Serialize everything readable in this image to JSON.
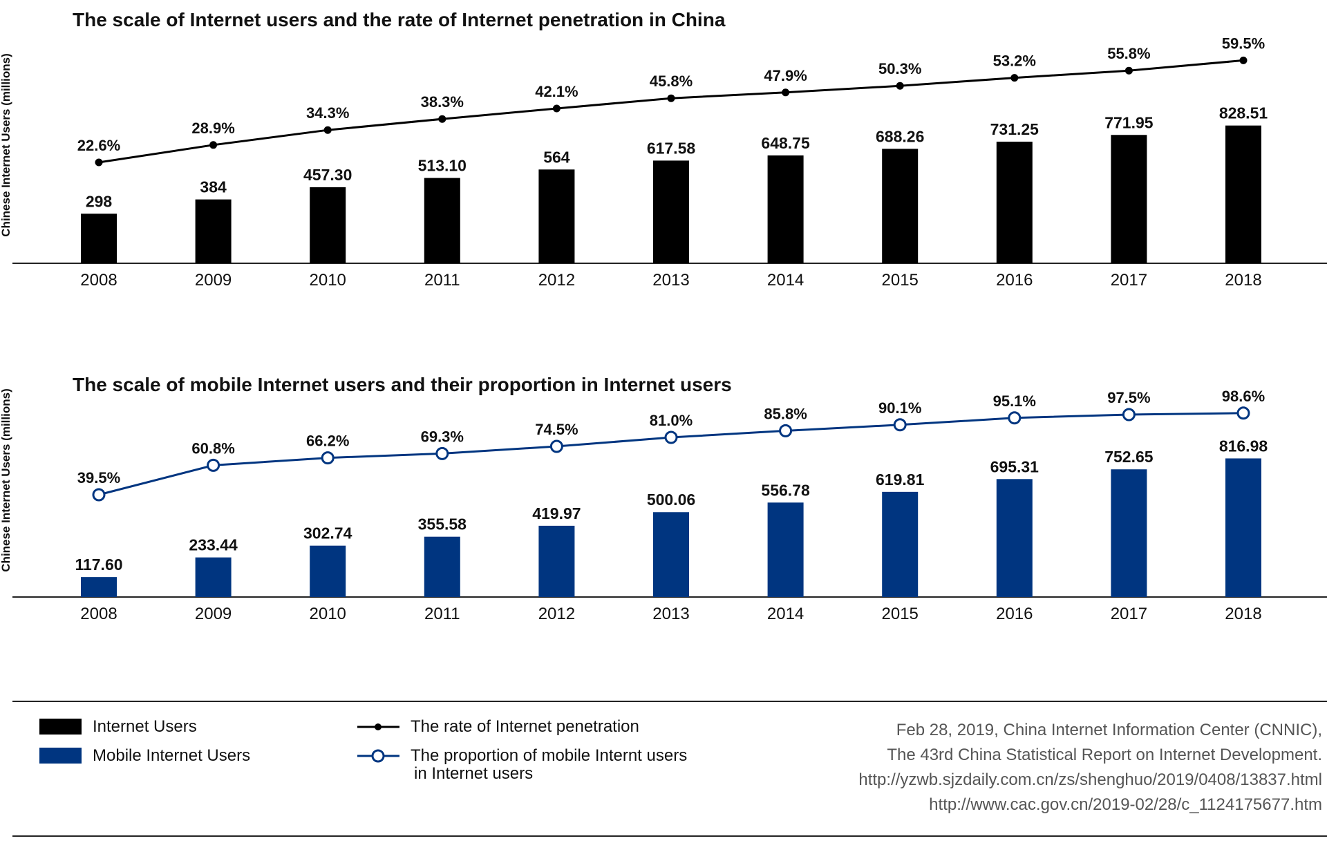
{
  "chart_data": [
    {
      "type": "bar",
      "title": "The scale of Internet users and the rate of Internet penetration in China",
      "ylabel": "Chinese Internet Users (millions)",
      "categories": [
        "2008",
        "2009",
        "2010",
        "2011",
        "2012",
        "2013",
        "2014",
        "2015",
        "2016",
        "2017",
        "2018"
      ],
      "series": [
        {
          "name": "Internet Users",
          "type": "bar",
          "color": "#000000",
          "values": [
            298,
            384,
            457.3,
            513.1,
            564,
            617.58,
            648.75,
            688.26,
            731.25,
            771.95,
            828.51
          ],
          "labels": [
            "298",
            "384",
            "457.30",
            "513.10",
            "564",
            "617.58",
            "648.75",
            "688.26",
            "731.25",
            "771.95",
            "828.51"
          ]
        },
        {
          "name": "The rate of Internet penetration",
          "type": "line",
          "marker": "filled-dot",
          "color": "#000000",
          "values": [
            22.6,
            28.9,
            34.3,
            38.3,
            42.1,
            45.8,
            47.9,
            50.3,
            53.2,
            55.8,
            59.5
          ],
          "labels": [
            "22.6%",
            "28.9%",
            "34.3%",
            "38.3%",
            "42.1%",
            "45.8%",
            "47.9%",
            "50.3%",
            "53.2%",
            "55.8%",
            "59.5%"
          ]
        }
      ]
    },
    {
      "type": "bar",
      "title": "The scale of mobile Internet users and their proportion in Internet users",
      "ylabel": "Chinese Internet Users (millions)",
      "categories": [
        "2008",
        "2009",
        "2010",
        "2011",
        "2012",
        "2013",
        "2014",
        "2015",
        "2016",
        "2017",
        "2018"
      ],
      "series": [
        {
          "name": "Mobile Internet Users",
          "type": "bar",
          "color": "#003580",
          "values": [
            117.6,
            233.44,
            302.74,
            355.58,
            419.97,
            500.06,
            556.78,
            619.81,
            695.31,
            752.65,
            816.98
          ],
          "labels": [
            "117.60",
            "233.44",
            "302.74",
            "355.58",
            "419.97",
            "500.06",
            "556.78",
            "619.81",
            "695.31",
            "752.65",
            "816.98"
          ]
        },
        {
          "name": "The  proportion of mobile Internt users in Internet users",
          "type": "line",
          "marker": "hollow-circle",
          "color": "#003580",
          "values": [
            39.5,
            60.8,
            66.2,
            69.3,
            74.5,
            81.0,
            85.8,
            90.1,
            95.1,
            97.5,
            98.6
          ],
          "labels": [
            "39.5%",
            "60.8%",
            "66.2%",
            "69.3%",
            "74.5%",
            "81.0%",
            "85.8%",
            "90.1%",
            "95.1%",
            "97.5%",
            "98.6%"
          ]
        }
      ]
    }
  ],
  "legend": {
    "internet_users": "Internet Users",
    "mobile_internet_users": "Mobile Internet Users",
    "penetration_rate": "The rate of Internet penetration",
    "mobile_proportion_line1": "The  proportion of mobile Internt users",
    "mobile_proportion_line2": "in Internet users"
  },
  "source": {
    "line1": "Feb 28, 2019, China Internet Information Center (CNNIC),",
    "line2": "The 43rd China Statistical Report on Internet Development.",
    "line3": "http://yzwb.sjzdaily.com.cn/zs/shenghuo/2019/0408/13837.html",
    "line4": "http://www.cac.gov.cn/2019-02/28/c_1124175677.htm"
  },
  "colors": {
    "black": "#000000",
    "blue": "#003580",
    "source_gray": "#555555"
  }
}
